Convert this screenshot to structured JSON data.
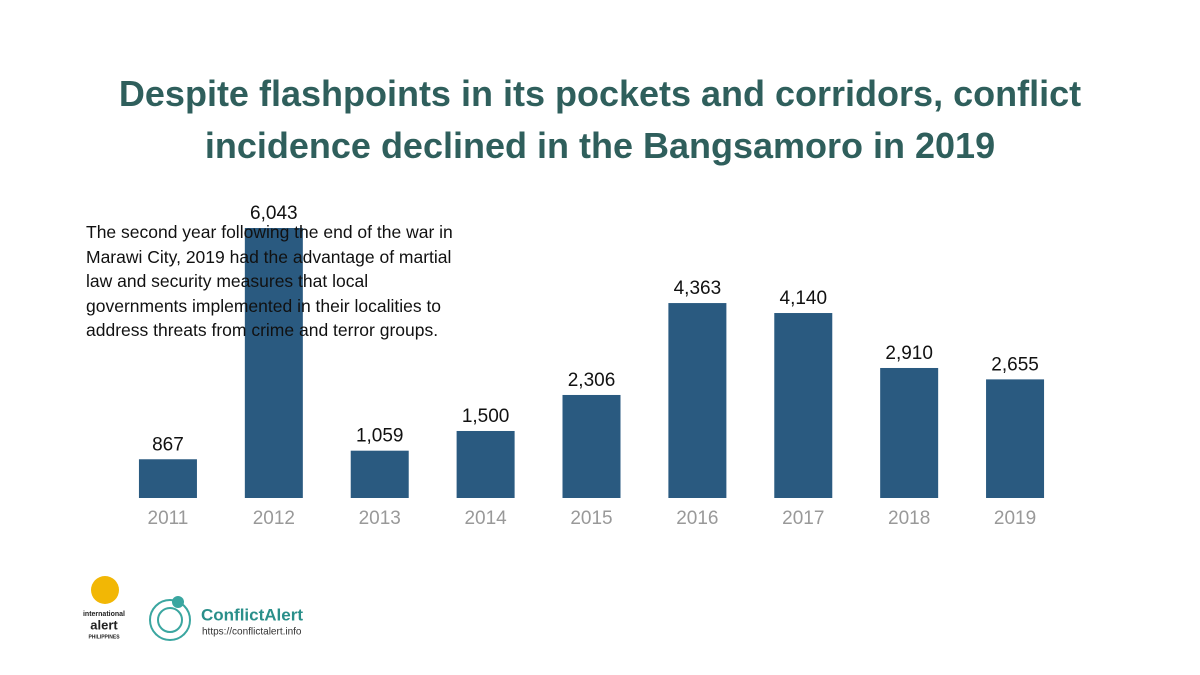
{
  "chart_data": {
    "type": "bar",
    "title": "Despite flashpoints in its pockets and corridors, conflict incidence declined in the Bangsamoro in 2019",
    "description": "The second year following the end of the war in Marawi City, 2019 had the advantage of martial law and security measures that local governments implemented in their localities to address threats from crime and terror groups.",
    "categories": [
      "2011",
      "2012",
      "2013",
      "2014",
      "2015",
      "2016",
      "2017",
      "2018",
      "2019"
    ],
    "values": [
      867,
      6043,
      1059,
      1500,
      2306,
      4363,
      4140,
      2910,
      2655
    ],
    "value_labels": [
      "867",
      "6,043",
      "1,059",
      "1,500",
      "2,306",
      "4,363",
      "4,140",
      "2,910",
      "2,655"
    ],
    "color": "#2a5a80"
  },
  "footer": {
    "logo1_line1": "international",
    "logo1_line2": "alert",
    "logo1_line3": "PHILIPPINES",
    "logo2_name": "ConflictAlert",
    "logo2_url": "https://conflictalert.info"
  }
}
